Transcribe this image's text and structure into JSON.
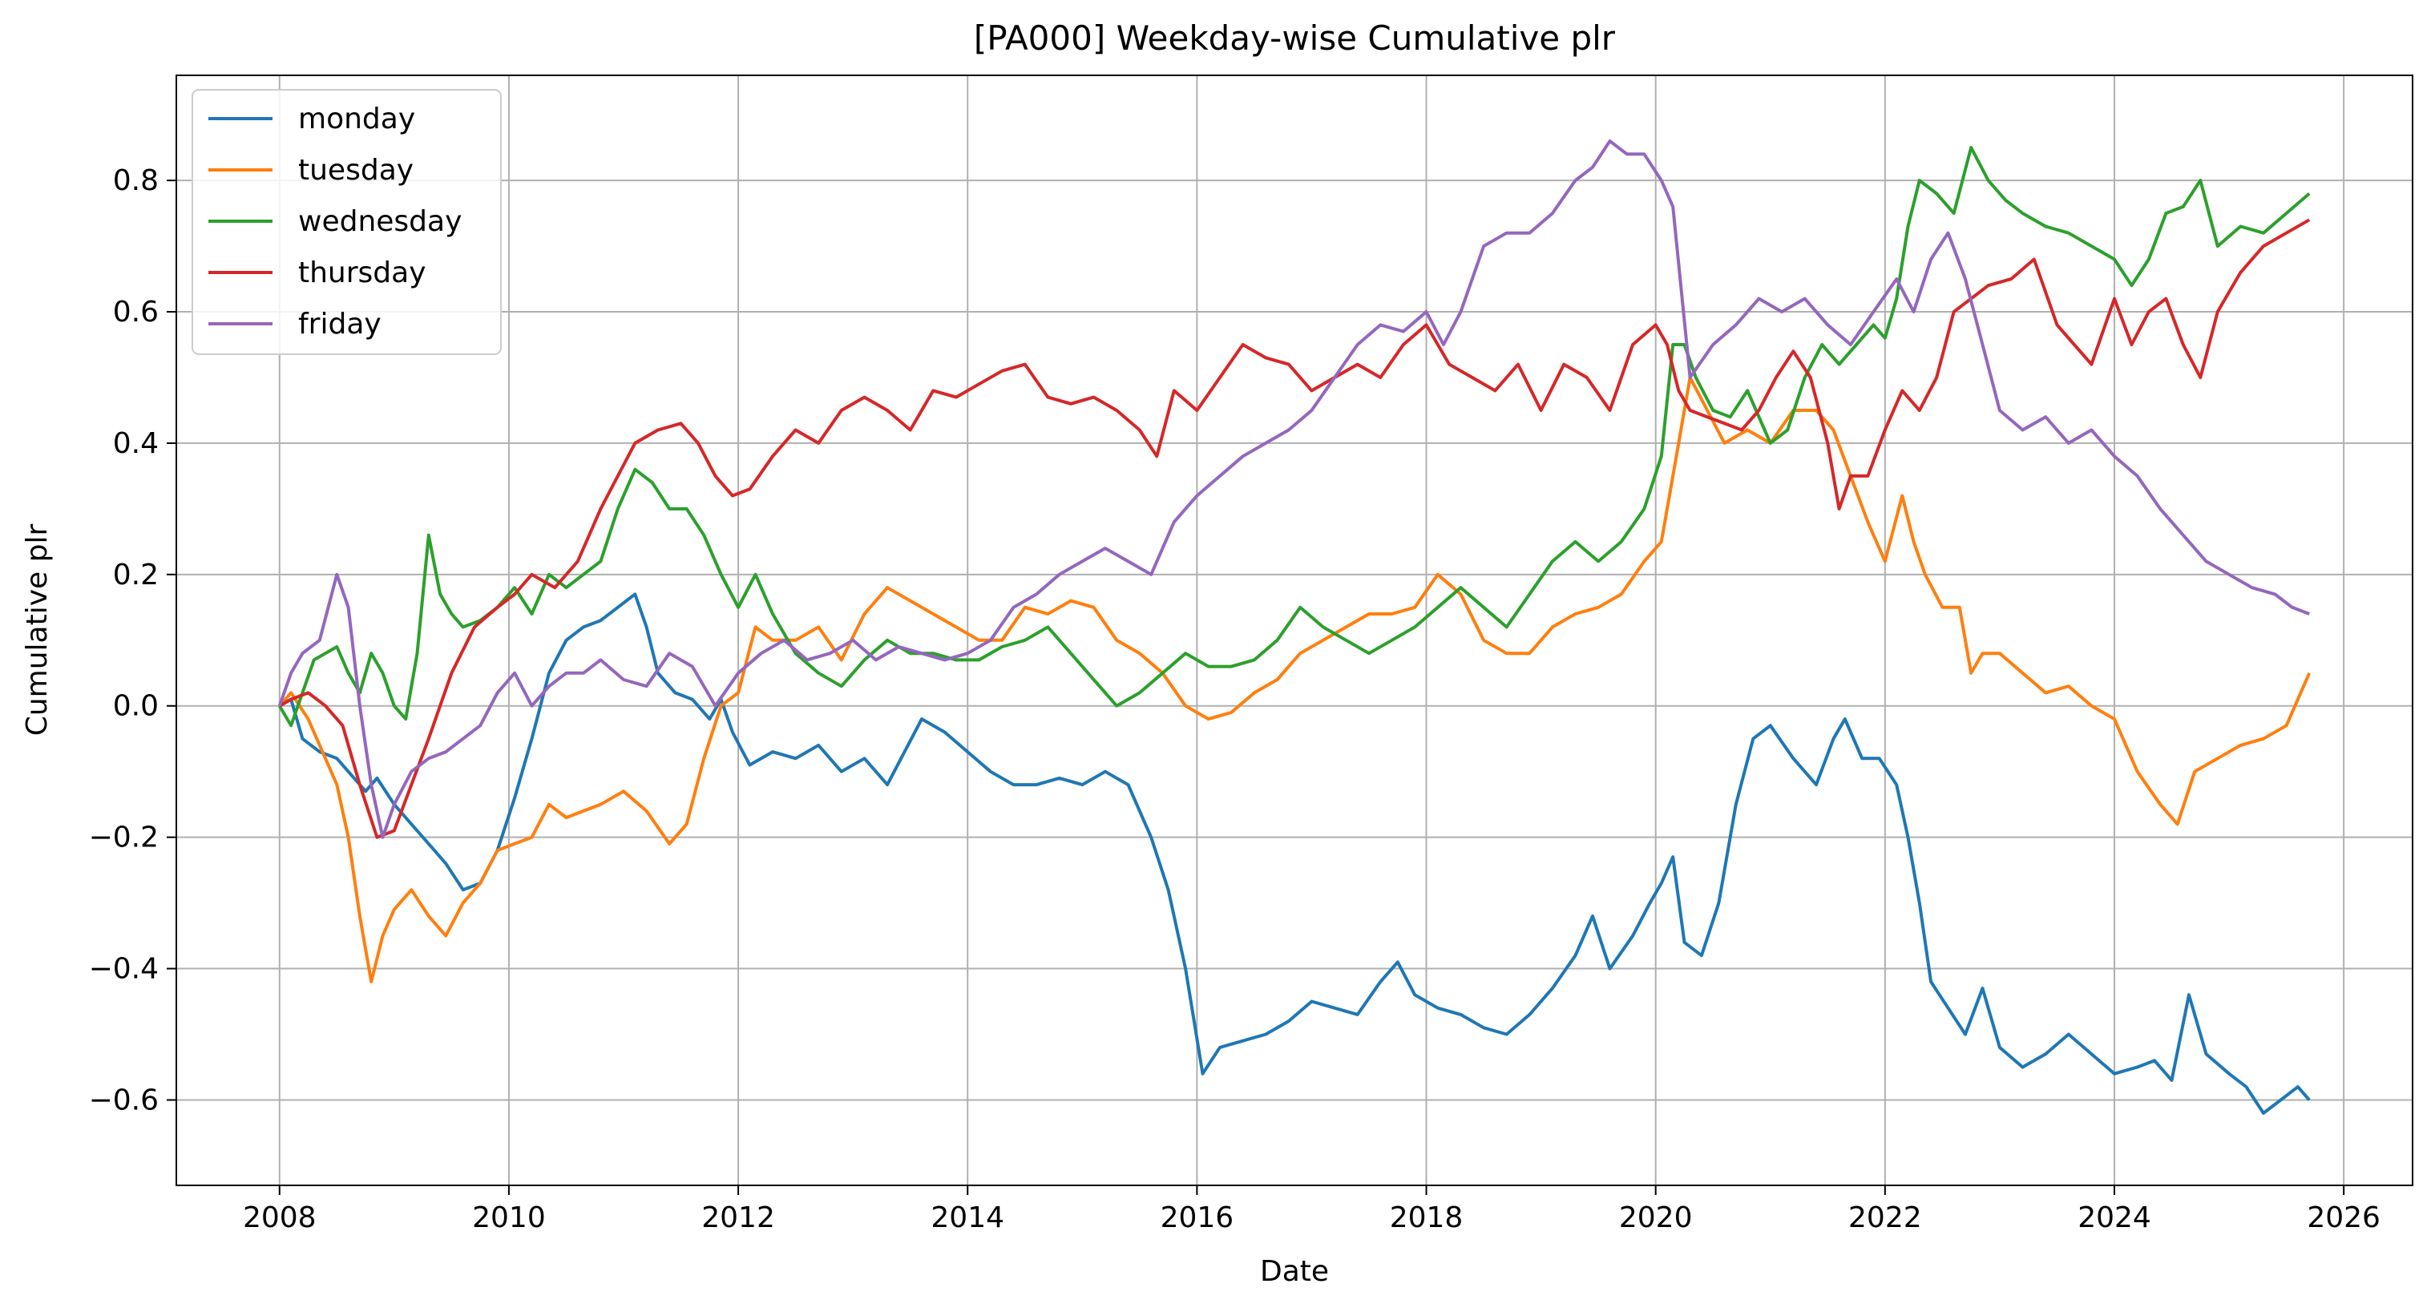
{
  "chart_data": {
    "type": "line",
    "title": "[PA000] Weekday-wise Cumulative plr",
    "xlabel": "Date",
    "ylabel": "Cumulative plr",
    "xlim": [
      2007.1,
      2026.6
    ],
    "ylim": [
      -0.73,
      0.96
    ],
    "xticks": [
      2008,
      2010,
      2012,
      2014,
      2016,
      2018,
      2020,
      2022,
      2024,
      2026
    ],
    "xtick_labels": [
      "2008",
      "2010",
      "2012",
      "2014",
      "2016",
      "2018",
      "2020",
      "2022",
      "2024",
      "2026"
    ],
    "yticks": [
      -0.6,
      -0.4,
      -0.2,
      0.0,
      0.2,
      0.4,
      0.6,
      0.8
    ],
    "ytick_labels": [
      "−0.6",
      "−0.4",
      "−0.2",
      "0.0",
      "0.2",
      "0.4",
      "0.6",
      "0.8"
    ],
    "grid": true,
    "legend_position": "upper-left",
    "series": [
      {
        "name": "monday",
        "color": "#1f77b4",
        "x": [
          2008.0,
          2008.1,
          2008.2,
          2008.35,
          2008.5,
          2008.6,
          2008.75,
          2008.85,
          2009.0,
          2009.15,
          2009.3,
          2009.45,
          2009.6,
          2009.75,
          2009.9,
          2010.05,
          2010.2,
          2010.35,
          2010.5,
          2010.65,
          2010.8,
          2010.95,
          2011.1,
          2011.2,
          2011.3,
          2011.45,
          2011.6,
          2011.75,
          2011.85,
          2011.95,
          2012.1,
          2012.3,
          2012.5,
          2012.7,
          2012.9,
          2013.1,
          2013.3,
          2013.45,
          2013.6,
          2013.8,
          2014.0,
          2014.2,
          2014.4,
          2014.6,
          2014.8,
          2015.0,
          2015.2,
          2015.4,
          2015.6,
          2015.75,
          2015.9,
          2016.05,
          2016.2,
          2016.4,
          2016.6,
          2016.8,
          2017.0,
          2017.2,
          2017.4,
          2017.6,
          2017.75,
          2017.9,
          2018.1,
          2018.3,
          2018.5,
          2018.7,
          2018.9,
          2019.1,
          2019.3,
          2019.45,
          2019.6,
          2019.8,
          2019.95,
          2020.05,
          2020.15,
          2020.25,
          2020.4,
          2020.55,
          2020.7,
          2020.85,
          2021.0,
          2021.2,
          2021.4,
          2021.55,
          2021.65,
          2021.8,
          2021.95,
          2022.1,
          2022.2,
          2022.3,
          2022.4,
          2022.55,
          2022.7,
          2022.85,
          2023.0,
          2023.2,
          2023.4,
          2023.6,
          2023.8,
          2024.0,
          2024.2,
          2024.35,
          2024.5,
          2024.65,
          2024.8,
          2025.0,
          2025.15,
          2025.3,
          2025.45,
          2025.6,
          2025.7
        ],
        "values": [
          0.0,
          0.01,
          -0.05,
          -0.07,
          -0.08,
          -0.1,
          -0.13,
          -0.11,
          -0.15,
          -0.18,
          -0.21,
          -0.24,
          -0.28,
          -0.27,
          -0.22,
          -0.14,
          -0.05,
          0.05,
          0.1,
          0.12,
          0.13,
          0.15,
          0.17,
          0.12,
          0.05,
          0.02,
          0.01,
          -0.02,
          0.01,
          -0.04,
          -0.09,
          -0.07,
          -0.08,
          -0.06,
          -0.1,
          -0.08,
          -0.12,
          -0.07,
          -0.02,
          -0.04,
          -0.07,
          -0.1,
          -0.12,
          -0.12,
          -0.11,
          -0.12,
          -0.1,
          -0.12,
          -0.2,
          -0.28,
          -0.4,
          -0.56,
          -0.52,
          -0.51,
          -0.5,
          -0.48,
          -0.45,
          -0.46,
          -0.47,
          -0.42,
          -0.39,
          -0.44,
          -0.46,
          -0.47,
          -0.49,
          -0.5,
          -0.47,
          -0.43,
          -0.38,
          -0.32,
          -0.4,
          -0.35,
          -0.3,
          -0.27,
          -0.23,
          -0.36,
          -0.38,
          -0.3,
          -0.15,
          -0.05,
          -0.03,
          -0.08,
          -0.12,
          -0.05,
          -0.02,
          -0.08,
          -0.08,
          -0.12,
          -0.2,
          -0.3,
          -0.42,
          -0.46,
          -0.5,
          -0.43,
          -0.52,
          -0.55,
          -0.53,
          -0.5,
          -0.53,
          -0.56,
          -0.55,
          -0.54,
          -0.57,
          -0.44,
          -0.53,
          -0.56,
          -0.58,
          -0.62,
          -0.6,
          -0.58,
          -0.6
        ]
      },
      {
        "name": "tuesday",
        "color": "#ff7f0e",
        "x": [
          2008.0,
          2008.1,
          2008.25,
          2008.4,
          2008.5,
          2008.6,
          2008.7,
          2008.8,
          2008.9,
          2009.0,
          2009.15,
          2009.3,
          2009.45,
          2009.6,
          2009.75,
          2009.9,
          2010.05,
          2010.2,
          2010.35,
          2010.5,
          2010.65,
          2010.8,
          2011.0,
          2011.2,
          2011.4,
          2011.55,
          2011.7,
          2011.85,
          2012.0,
          2012.15,
          2012.3,
          2012.5,
          2012.7,
          2012.9,
          2013.1,
          2013.3,
          2013.5,
          2013.7,
          2013.9,
          2014.1,
          2014.3,
          2014.5,
          2014.7,
          2014.9,
          2015.1,
          2015.3,
          2015.5,
          2015.7,
          2015.9,
          2016.1,
          2016.3,
          2016.5,
          2016.7,
          2016.9,
          2017.1,
          2017.3,
          2017.5,
          2017.7,
          2017.9,
          2018.1,
          2018.3,
          2018.5,
          2018.7,
          2018.9,
          2019.1,
          2019.3,
          2019.5,
          2019.7,
          2019.9,
          2020.05,
          2020.15,
          2020.3,
          2020.45,
          2020.6,
          2020.8,
          2021.0,
          2021.2,
          2021.4,
          2021.55,
          2021.7,
          2021.85,
          2022.0,
          2022.15,
          2022.25,
          2022.35,
          2022.5,
          2022.65,
          2022.75,
          2022.85,
          2023.0,
          2023.2,
          2023.4,
          2023.6,
          2023.8,
          2024.0,
          2024.2,
          2024.4,
          2024.55,
          2024.7,
          2024.9,
          2025.1,
          2025.3,
          2025.5,
          2025.7
        ],
        "values": [
          0.0,
          0.02,
          -0.02,
          -0.08,
          -0.12,
          -0.2,
          -0.32,
          -0.42,
          -0.35,
          -0.31,
          -0.28,
          -0.32,
          -0.35,
          -0.3,
          -0.27,
          -0.22,
          -0.21,
          -0.2,
          -0.15,
          -0.17,
          -0.16,
          -0.15,
          -0.13,
          -0.16,
          -0.21,
          -0.18,
          -0.08,
          0.0,
          0.02,
          0.12,
          0.1,
          0.1,
          0.12,
          0.07,
          0.14,
          0.18,
          0.16,
          0.14,
          0.12,
          0.1,
          0.1,
          0.15,
          0.14,
          0.16,
          0.15,
          0.1,
          0.08,
          0.05,
          0.0,
          -0.02,
          -0.01,
          0.02,
          0.04,
          0.08,
          0.1,
          0.12,
          0.14,
          0.14,
          0.15,
          0.2,
          0.17,
          0.1,
          0.08,
          0.08,
          0.12,
          0.14,
          0.15,
          0.17,
          0.22,
          0.25,
          0.35,
          0.5,
          0.45,
          0.4,
          0.42,
          0.4,
          0.45,
          0.45,
          0.42,
          0.35,
          0.28,
          0.22,
          0.32,
          0.25,
          0.2,
          0.15,
          0.15,
          0.05,
          0.08,
          0.08,
          0.05,
          0.02,
          0.03,
          0.0,
          -0.02,
          -0.1,
          -0.15,
          -0.18,
          -0.1,
          -0.08,
          -0.06,
          -0.05,
          -0.03,
          0.05
        ]
      },
      {
        "name": "wednesday",
        "color": "#2ca02c",
        "x": [
          2008.0,
          2008.1,
          2008.2,
          2008.3,
          2008.4,
          2008.5,
          2008.6,
          2008.7,
          2008.8,
          2008.9,
          2009.0,
          2009.1,
          2009.2,
          2009.3,
          2009.4,
          2009.5,
          2009.6,
          2009.75,
          2009.9,
          2010.05,
          2010.2,
          2010.35,
          2010.5,
          2010.65,
          2010.8,
          2010.95,
          2011.1,
          2011.25,
          2011.4,
          2011.55,
          2011.7,
          2011.85,
          2012.0,
          2012.15,
          2012.3,
          2012.5,
          2012.7,
          2012.9,
          2013.1,
          2013.3,
          2013.5,
          2013.7,
          2013.9,
          2014.1,
          2014.3,
          2014.5,
          2014.7,
          2014.9,
          2015.1,
          2015.3,
          2015.5,
          2015.7,
          2015.9,
          2016.1,
          2016.3,
          2016.5,
          2016.7,
          2016.9,
          2017.1,
          2017.3,
          2017.5,
          2017.7,
          2017.9,
          2018.1,
          2018.3,
          2018.5,
          2018.7,
          2018.9,
          2019.1,
          2019.3,
          2019.5,
          2019.7,
          2019.9,
          2020.05,
          2020.15,
          2020.25,
          2020.35,
          2020.5,
          2020.65,
          2020.8,
          2021.0,
          2021.15,
          2021.3,
          2021.45,
          2021.6,
          2021.75,
          2021.9,
          2022.0,
          2022.1,
          2022.2,
          2022.3,
          2022.45,
          2022.6,
          2022.75,
          2022.9,
          2023.05,
          2023.2,
          2023.4,
          2023.6,
          2023.8,
          2024.0,
          2024.15,
          2024.3,
          2024.45,
          2024.6,
          2024.75,
          2024.9,
          2025.1,
          2025.3,
          2025.5,
          2025.7
        ],
        "values": [
          0.0,
          -0.03,
          0.02,
          0.07,
          0.08,
          0.09,
          0.05,
          0.02,
          0.08,
          0.05,
          0.0,
          -0.02,
          0.08,
          0.26,
          0.17,
          0.14,
          0.12,
          0.13,
          0.15,
          0.18,
          0.14,
          0.2,
          0.18,
          0.2,
          0.22,
          0.3,
          0.36,
          0.34,
          0.3,
          0.3,
          0.26,
          0.2,
          0.15,
          0.2,
          0.14,
          0.08,
          0.05,
          0.03,
          0.07,
          0.1,
          0.08,
          0.08,
          0.07,
          0.07,
          0.09,
          0.1,
          0.12,
          0.08,
          0.04,
          0.0,
          0.02,
          0.05,
          0.08,
          0.06,
          0.06,
          0.07,
          0.1,
          0.15,
          0.12,
          0.1,
          0.08,
          0.1,
          0.12,
          0.15,
          0.18,
          0.15,
          0.12,
          0.17,
          0.22,
          0.25,
          0.22,
          0.25,
          0.3,
          0.38,
          0.55,
          0.55,
          0.5,
          0.45,
          0.44,
          0.48,
          0.4,
          0.42,
          0.5,
          0.55,
          0.52,
          0.55,
          0.58,
          0.56,
          0.62,
          0.73,
          0.8,
          0.78,
          0.75,
          0.85,
          0.8,
          0.77,
          0.75,
          0.73,
          0.72,
          0.7,
          0.68,
          0.64,
          0.68,
          0.75,
          0.76,
          0.8,
          0.7,
          0.73,
          0.72,
          0.75,
          0.78
        ]
      },
      {
        "name": "thursday",
        "color": "#d62728",
        "x": [
          2008.0,
          2008.1,
          2008.25,
          2008.4,
          2008.55,
          2008.7,
          2008.85,
          2009.0,
          2009.15,
          2009.3,
          2009.5,
          2009.7,
          2009.9,
          2010.05,
          2010.2,
          2010.4,
          2010.6,
          2010.8,
          2010.95,
          2011.1,
          2011.3,
          2011.5,
          2011.65,
          2011.8,
          2011.95,
          2012.1,
          2012.3,
          2012.5,
          2012.7,
          2012.9,
          2013.1,
          2013.3,
          2013.5,
          2013.7,
          2013.9,
          2014.1,
          2014.3,
          2014.5,
          2014.7,
          2014.9,
          2015.1,
          2015.3,
          2015.5,
          2015.65,
          2015.8,
          2016.0,
          2016.2,
          2016.4,
          2016.6,
          2016.8,
          2017.0,
          2017.2,
          2017.4,
          2017.6,
          2017.8,
          2018.0,
          2018.2,
          2018.4,
          2018.6,
          2018.8,
          2019.0,
          2019.2,
          2019.4,
          2019.6,
          2019.8,
          2020.0,
          2020.1,
          2020.2,
          2020.3,
          2020.45,
          2020.6,
          2020.75,
          2020.9,
          2021.05,
          2021.2,
          2021.35,
          2021.5,
          2021.6,
          2021.7,
          2021.85,
          2022.0,
          2022.15,
          2022.3,
          2022.45,
          2022.6,
          2022.75,
          2022.9,
          2023.1,
          2023.3,
          2023.5,
          2023.65,
          2023.8,
          2024.0,
          2024.15,
          2024.3,
          2024.45,
          2024.6,
          2024.75,
          2024.9,
          2025.1,
          2025.3,
          2025.5,
          2025.7
        ],
        "values": [
          0.0,
          0.01,
          0.02,
          0.0,
          -0.03,
          -0.12,
          -0.2,
          -0.19,
          -0.12,
          -0.05,
          0.05,
          0.12,
          0.15,
          0.17,
          0.2,
          0.18,
          0.22,
          0.3,
          0.35,
          0.4,
          0.42,
          0.43,
          0.4,
          0.35,
          0.32,
          0.33,
          0.38,
          0.42,
          0.4,
          0.45,
          0.47,
          0.45,
          0.42,
          0.48,
          0.47,
          0.49,
          0.51,
          0.52,
          0.47,
          0.46,
          0.47,
          0.45,
          0.42,
          0.38,
          0.48,
          0.45,
          0.5,
          0.55,
          0.53,
          0.52,
          0.48,
          0.5,
          0.52,
          0.5,
          0.55,
          0.58,
          0.52,
          0.5,
          0.48,
          0.52,
          0.45,
          0.52,
          0.5,
          0.45,
          0.55,
          0.58,
          0.55,
          0.48,
          0.45,
          0.44,
          0.43,
          0.42,
          0.45,
          0.5,
          0.54,
          0.5,
          0.4,
          0.3,
          0.35,
          0.35,
          0.42,
          0.48,
          0.45,
          0.5,
          0.6,
          0.62,
          0.64,
          0.65,
          0.68,
          0.58,
          0.55,
          0.52,
          0.62,
          0.55,
          0.6,
          0.62,
          0.55,
          0.5,
          0.6,
          0.66,
          0.7,
          0.72,
          0.74
        ]
      },
      {
        "name": "friday",
        "color": "#9467bd",
        "x": [
          2008.0,
          2008.1,
          2008.2,
          2008.35,
          2008.5,
          2008.6,
          2008.7,
          2008.8,
          2008.9,
          2009.0,
          2009.15,
          2009.3,
          2009.45,
          2009.6,
          2009.75,
          2009.9,
          2010.05,
          2010.2,
          2010.35,
          2010.5,
          2010.65,
          2010.8,
          2011.0,
          2011.2,
          2011.4,
          2011.6,
          2011.8,
          2012.0,
          2012.2,
          2012.4,
          2012.6,
          2012.8,
          2013.0,
          2013.2,
          2013.4,
          2013.6,
          2013.8,
          2014.0,
          2014.2,
          2014.4,
          2014.6,
          2014.8,
          2015.0,
          2015.2,
          2015.4,
          2015.6,
          2015.8,
          2016.0,
          2016.2,
          2016.4,
          2016.6,
          2016.8,
          2017.0,
          2017.2,
          2017.4,
          2017.6,
          2017.8,
          2018.0,
          2018.15,
          2018.3,
          2018.5,
          2018.7,
          2018.9,
          2019.1,
          2019.3,
          2019.45,
          2019.6,
          2019.75,
          2019.9,
          2020.05,
          2020.15,
          2020.3,
          2020.5,
          2020.7,
          2020.9,
          2021.1,
          2021.3,
          2021.5,
          2021.7,
          2021.9,
          2022.1,
          2022.25,
          2022.4,
          2022.55,
          2022.7,
          2022.85,
          2023.0,
          2023.2,
          2023.4,
          2023.6,
          2023.8,
          2024.0,
          2024.2,
          2024.4,
          2024.6,
          2024.8,
          2025.0,
          2025.2,
          2025.4,
          2025.55,
          2025.7
        ],
        "values": [
          0.0,
          0.05,
          0.08,
          0.1,
          0.2,
          0.15,
          0.0,
          -0.12,
          -0.2,
          -0.15,
          -0.1,
          -0.08,
          -0.07,
          -0.05,
          -0.03,
          0.02,
          0.05,
          0.0,
          0.03,
          0.05,
          0.05,
          0.07,
          0.04,
          0.03,
          0.08,
          0.06,
          0.0,
          0.05,
          0.08,
          0.1,
          0.07,
          0.08,
          0.1,
          0.07,
          0.09,
          0.08,
          0.07,
          0.08,
          0.1,
          0.15,
          0.17,
          0.2,
          0.22,
          0.24,
          0.22,
          0.2,
          0.28,
          0.32,
          0.35,
          0.38,
          0.4,
          0.42,
          0.45,
          0.5,
          0.55,
          0.58,
          0.57,
          0.6,
          0.55,
          0.6,
          0.7,
          0.72,
          0.72,
          0.75,
          0.8,
          0.82,
          0.86,
          0.84,
          0.84,
          0.8,
          0.76,
          0.5,
          0.55,
          0.58,
          0.62,
          0.6,
          0.62,
          0.58,
          0.55,
          0.6,
          0.65,
          0.6,
          0.68,
          0.72,
          0.65,
          0.55,
          0.45,
          0.42,
          0.44,
          0.4,
          0.42,
          0.38,
          0.35,
          0.3,
          0.26,
          0.22,
          0.2,
          0.18,
          0.17,
          0.15,
          0.14
        ]
      }
    ]
  }
}
